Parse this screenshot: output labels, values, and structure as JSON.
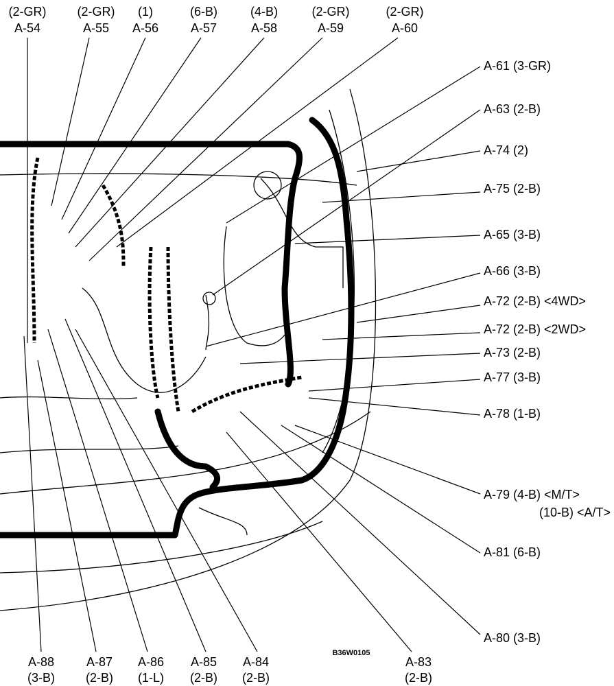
{
  "top_labels": [
    {
      "lines": [
        "(2-GR)",
        "A-54"
      ]
    },
    {
      "lines": [
        "(2-GR)",
        "A-55"
      ]
    },
    {
      "lines": [
        "(1)",
        "A-56"
      ]
    },
    {
      "lines": [
        "(6-B)",
        "A-57"
      ]
    },
    {
      "lines": [
        "(4-B)",
        "A-58"
      ]
    },
    {
      "lines": [
        "(2-GR)",
        "A-59"
      ]
    },
    {
      "lines": [
        "(2-GR)",
        "A-60"
      ]
    }
  ],
  "right_labels": [
    {
      "lines": [
        "A-61 (3-GR)"
      ]
    },
    {
      "lines": [
        "A-63 (2-B)"
      ]
    },
    {
      "lines": [
        "A-74  (2)"
      ]
    },
    {
      "lines": [
        "A-75  (2-B)"
      ]
    },
    {
      "lines": [
        "A-65 (3-B)"
      ]
    },
    {
      "lines": [
        "A-66 (3-B)"
      ]
    },
    {
      "lines": [
        "A-72 (2-B) <4WD>"
      ]
    },
    {
      "lines": [
        "A-72 (2-B) <2WD>"
      ]
    },
    {
      "lines": [
        "A-73 (2-B)"
      ]
    },
    {
      "lines": [
        "A-77 (3-B)"
      ]
    },
    {
      "lines": [
        "A-78 (1-B)"
      ]
    },
    {
      "lines": [
        "A-79 (4-B) <M/T>",
        "(10-B) <A/T>"
      ]
    },
    {
      "lines": [
        "A-81 (6-B)"
      ]
    },
    {
      "lines": [
        "A-80 (3-B)"
      ]
    }
  ],
  "bottom_labels": [
    {
      "lines": [
        "A-88",
        "(3-B)"
      ]
    },
    {
      "lines": [
        "A-87",
        "(2-B)"
      ]
    },
    {
      "lines": [
        "A-86",
        "(1-L)"
      ]
    },
    {
      "lines": [
        "A-85",
        "(2-B)"
      ]
    },
    {
      "lines": [
        "A-84",
        "(2-B)"
      ]
    },
    {
      "lines": [
        "A-83",
        "(2-B)"
      ]
    }
  ],
  "figure_code": "B36W0105"
}
